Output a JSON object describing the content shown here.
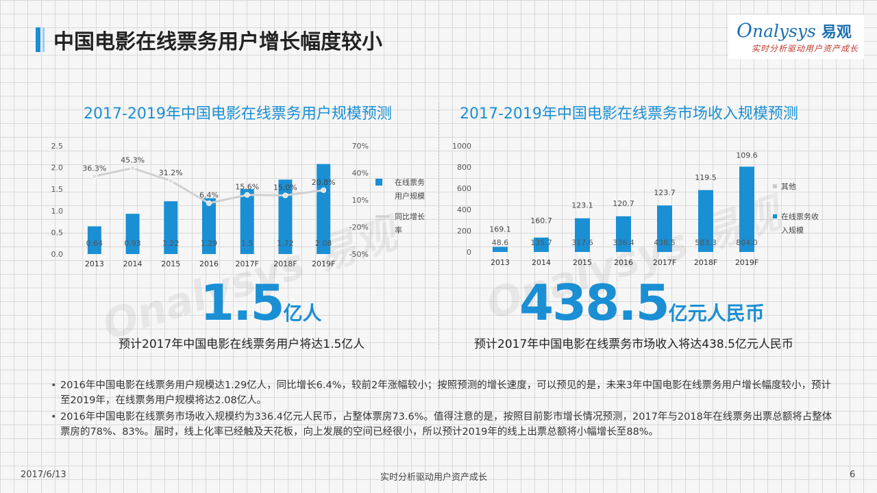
{
  "page": {
    "title": "中国电影在线票务用户增长幅度较小",
    "logo_text": "nalysys",
    "logo_cn": "易观",
    "logo_slogan": "实时分析驱动用户资产成长"
  },
  "left": {
    "subtitle": "2017-2019年中国电影在线票务用户规模预测",
    "big_number": "1.5",
    "big_unit": "亿人",
    "caption": "预计2017年中国电影在线票务用户将达1.5亿人"
  },
  "right": {
    "subtitle": "2017-2019年中国电影在线票务市场收入规模预测",
    "big_number": "438.5",
    "big_unit": "亿元人民币",
    "caption": "预计2017年中国电影在线票务市场收入将达438.5亿元人民币"
  },
  "bullets": [
    "2016年中国电影在线票务用户规模达1.29亿人，同比增长6.4%，较前2年涨幅较小；按照预测的增长速度，可以预见的是，未来3年中国电影在线票务用户增长幅度较小，预计至2019年，在线票务用户规模将达2.08亿人。",
    "2016年中国电影在线票务市场收入规模约为336.4亿元人民币，占整体票房73.6%。值得注意的是，按照目前影市增长情况预测，2017年与2018年在线票务出票总额将占整体票房的78%、83%。届时，线上化率已经触及天花板，向上发展的空间已经很小，所以预计2019年的线上出票总额将小幅增长至88%。"
  ],
  "footer": {
    "date": "2017/6/13",
    "center": "实时分析驱动用户资产成长",
    "page_number": "6"
  },
  "colors": {
    "accent": "#1a8fd4",
    "bar": "#1a8fd4",
    "line": "#d0d0d0"
  },
  "chart_data": [
    {
      "type": "bar",
      "categories": [
        "2013",
        "2014",
        "2015",
        "2016",
        "2017F",
        "2018F",
        "2019F"
      ],
      "series": [
        {
          "name": "在线票务用户规模",
          "type": "bar",
          "axis": "left",
          "values": [
            0.64,
            0.93,
            1.22,
            1.29,
            1.5,
            1.72,
            2.08
          ]
        },
        {
          "name": "同比增长率",
          "type": "line",
          "axis": "right",
          "values": [
            36.3,
            45.3,
            31.2,
            6.4,
            15.6,
            15.0,
            20.8
          ],
          "labels": [
            "36.3%",
            "45.3%",
            "31.2%",
            "6.4%",
            "15.6%",
            "15.0%",
            "20.8%"
          ]
        }
      ],
      "bar_labels": [
        "0.64",
        "0.93",
        "1.22",
        "1.29",
        "1.5",
        "1.72",
        "2.08"
      ],
      "ylim": [
        0,
        2.5
      ],
      "yticks": [
        "0.0",
        "0.5",
        "1.0",
        "1.5",
        "2.0",
        "2.5"
      ],
      "y2lim": [
        -50,
        70
      ],
      "y2ticks": [
        "-50%",
        "-20%",
        "10%",
        "40%",
        "70%"
      ],
      "legend": [
        "在线票务",
        "用户规模",
        "同比增长",
        "率"
      ],
      "legend_position": "right"
    },
    {
      "type": "bar",
      "stacked": true,
      "categories": [
        "2013",
        "2014",
        "2015",
        "2016",
        "2017F",
        "2018F",
        "2019F"
      ],
      "series": [
        {
          "name": "在线票务收入规模",
          "values": [
            48.6,
            135.7,
            317.6,
            336.4,
            438.5,
            583.3,
            804.0
          ],
          "labels": [
            "48.6",
            "135.7",
            "317.6",
            "336.4",
            "438.5",
            "583.3",
            "804.0"
          ]
        },
        {
          "name": "其他",
          "values": [
            169.1,
            160.7,
            123.1,
            120.7,
            123.7,
            119.5,
            109.6
          ],
          "labels": [
            "169.1",
            "160.7",
            "123.1",
            "120.7",
            "123.7",
            "119.5",
            "109.6"
          ]
        }
      ],
      "ylim": [
        0,
        1000
      ],
      "yticks": [
        "0",
        "200",
        "400",
        "600",
        "800",
        "1000"
      ],
      "legend": [
        "其他",
        "在线票务收",
        "入规模"
      ],
      "legend_position": "right"
    }
  ]
}
